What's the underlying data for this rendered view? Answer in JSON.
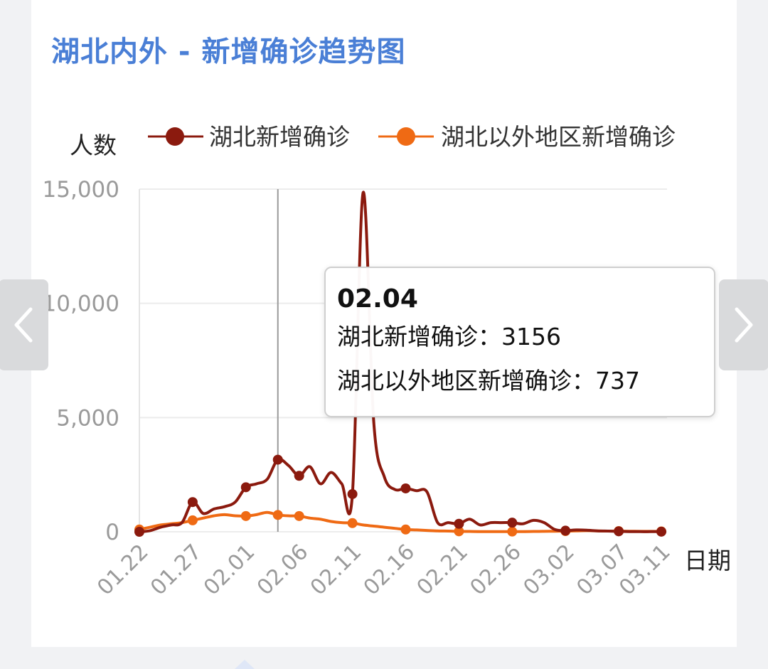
{
  "page": {
    "title": "湖北内外 - 新增确诊趋势图"
  },
  "colors": {
    "hubei": "#8b1a0e",
    "outside": "#ef6a14",
    "title": "#4a7fd6",
    "axis_text": "#9a9a9a"
  },
  "nav": {
    "prev_icon": "chevron-left-icon",
    "next_icon": "chevron-right-icon"
  },
  "tooltip": {
    "date": "02.04",
    "rows": [
      {
        "label": "湖北新增确诊：",
        "value": "3156"
      },
      {
        "label": "湖北以外地区新增确诊：",
        "value": "737"
      }
    ]
  },
  "chart_data": {
    "type": "line",
    "title": "湖北内外 - 新增确诊趋势图",
    "ylabel": "人数",
    "xlabel": "日期",
    "ylim": [
      0,
      15000
    ],
    "yticks": [
      0,
      5000,
      10000,
      15000
    ],
    "ytick_labels": [
      "0",
      "5,000",
      "10,000",
      "15,000"
    ],
    "xtick_labels": [
      "01.22",
      "01.27",
      "02.01",
      "02.06",
      "02.11",
      "02.16",
      "02.21",
      "02.26",
      "03.02",
      "03.07",
      "03.11"
    ],
    "xtick_positions": [
      0,
      5,
      10,
      15,
      20,
      25,
      30,
      35,
      40,
      45,
      49
    ],
    "legend": {
      "placement": "top"
    },
    "highlight_index": 13,
    "marker_indices": [
      0,
      5,
      10,
      13,
      15,
      20,
      25,
      30,
      35,
      40,
      45,
      49
    ],
    "series": [
      {
        "name": "湖北新增确诊",
        "values": [
          0,
          50,
          200,
          300,
          400,
          1300,
          800,
          1000,
          1100,
          1300,
          1950,
          2100,
          2300,
          3156,
          2900,
          2450,
          2850,
          2100,
          2600,
          2100,
          1650,
          14840,
          4800,
          2400,
          1850,
          1900,
          1800,
          1750,
          400,
          400,
          350,
          550,
          300,
          400,
          400,
          400,
          350,
          500,
          400,
          100,
          50,
          80,
          70,
          40,
          30,
          20,
          10,
          5,
          5,
          5
        ]
      },
      {
        "name": "湖北以外地区新增确诊",
        "values": [
          100,
          200,
          300,
          350,
          400,
          500,
          600,
          700,
          750,
          700,
          690,
          750,
          850,
          737,
          700,
          690,
          600,
          550,
          450,
          400,
          380,
          300,
          250,
          200,
          150,
          100,
          80,
          60,
          40,
          30,
          20,
          15,
          10,
          10,
          10,
          10,
          10,
          15,
          20,
          25,
          30,
          40,
          50,
          40,
          30,
          30,
          25,
          20,
          20,
          15
        ]
      }
    ]
  }
}
